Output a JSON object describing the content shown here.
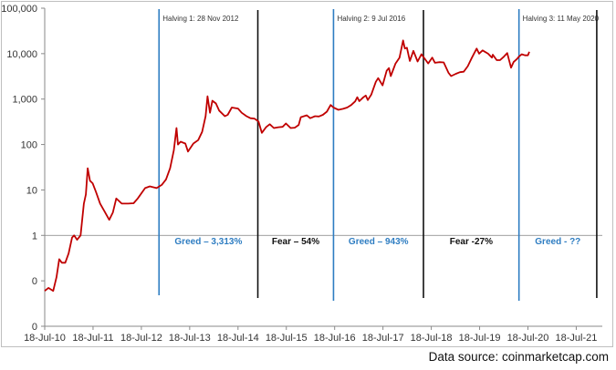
{
  "source_note": "Data source: coinmarketcap.com",
  "colors": {
    "price_line": "#c00000",
    "halving_line": "#2e7dc2",
    "marker_line": "#111111",
    "axis_text": "#333333",
    "greed_text": "#2e7dc2",
    "fear_text": "#111111"
  },
  "chart_data": {
    "type": "line",
    "title": "",
    "xlabel": "",
    "ylabel": "",
    "y_scale": "log",
    "y_tick_labels": [
      "0",
      "0",
      "1",
      "10",
      "100",
      "1,000",
      "10,000",
      "100,000"
    ],
    "y_tick_values": [
      0.01,
      0.1,
      1,
      10,
      100,
      1000,
      10000,
      100000
    ],
    "x_tick_labels": [
      "18-Jul-10",
      "18-Jul-11",
      "18-Jul-12",
      "18-Jul-13",
      "18-Jul-14",
      "18-Jul-15",
      "18-Jul-16",
      "18-Jul-17",
      "18-Jul-18",
      "18-Jul-19",
      "18-Jul-20",
      "18-Jul-21"
    ],
    "x_range": [
      "2010-07-18",
      "2022-01-31"
    ],
    "y_range": [
      0.01,
      100000
    ],
    "grid": false,
    "series": [
      {
        "points": [
          [
            "2010-07-18",
            0.06
          ],
          [
            "2010-08-15",
            0.07
          ],
          [
            "2010-09-20",
            0.06
          ],
          [
            "2010-10-15",
            0.12
          ],
          [
            "2010-11-05",
            0.3
          ],
          [
            "2010-11-25",
            0.25
          ],
          [
            "2010-12-20",
            0.25
          ],
          [
            "2011-01-15",
            0.4
          ],
          [
            "2011-02-10",
            0.9
          ],
          [
            "2011-02-25",
            1.0
          ],
          [
            "2011-03-20",
            0.8
          ],
          [
            "2011-04-15",
            1.0
          ],
          [
            "2011-05-10",
            5
          ],
          [
            "2011-05-25",
            8
          ],
          [
            "2011-06-08",
            30
          ],
          [
            "2011-06-25",
            16
          ],
          [
            "2011-07-15",
            14
          ],
          [
            "2011-08-10",
            9
          ],
          [
            "2011-09-10",
            5
          ],
          [
            "2011-10-10",
            3.5
          ],
          [
            "2011-11-18",
            2.2
          ],
          [
            "2011-12-15",
            3.2
          ],
          [
            "2012-01-10",
            6.5
          ],
          [
            "2012-02-20",
            5
          ],
          [
            "2012-04-10",
            5
          ],
          [
            "2012-05-20",
            5.1
          ],
          [
            "2012-06-20",
            6.5
          ],
          [
            "2012-08-15",
            11
          ],
          [
            "2012-09-20",
            12
          ],
          [
            "2012-11-10",
            11
          ],
          [
            "2012-12-20",
            13
          ],
          [
            "2013-01-20",
            17
          ],
          [
            "2013-02-20",
            30
          ],
          [
            "2013-03-20",
            75
          ],
          [
            "2013-04-09",
            230
          ],
          [
            "2013-04-20",
            100
          ],
          [
            "2013-05-10",
            115
          ],
          [
            "2013-06-15",
            105
          ],
          [
            "2013-07-05",
            70
          ],
          [
            "2013-08-15",
            105
          ],
          [
            "2013-09-20",
            125
          ],
          [
            "2013-10-20",
            190
          ],
          [
            "2013-11-15",
            420
          ],
          [
            "2013-11-30",
            1150
          ],
          [
            "2013-12-18",
            500
          ],
          [
            "2014-01-05",
            920
          ],
          [
            "2014-02-01",
            800
          ],
          [
            "2014-02-25",
            560
          ],
          [
            "2014-04-10",
            420
          ],
          [
            "2014-05-01",
            450
          ],
          [
            "2014-06-01",
            650
          ],
          [
            "2014-07-18",
            620
          ],
          [
            "2014-08-15",
            500
          ],
          [
            "2014-09-20",
            420
          ],
          [
            "2014-10-20",
            380
          ],
          [
            "2014-11-20",
            370
          ],
          [
            "2014-12-20",
            320
          ],
          [
            "2015-01-14",
            180
          ],
          [
            "2015-02-15",
            240
          ],
          [
            "2015-03-15",
            280
          ],
          [
            "2015-04-15",
            230
          ],
          [
            "2015-05-20",
            240
          ],
          [
            "2015-06-20",
            245
          ],
          [
            "2015-07-15",
            290
          ],
          [
            "2015-08-20",
            230
          ],
          [
            "2015-09-20",
            235
          ],
          [
            "2015-10-20",
            270
          ],
          [
            "2015-11-05",
            400
          ],
          [
            "2015-12-20",
            440
          ],
          [
            "2016-01-15",
            380
          ],
          [
            "2016-02-20",
            420
          ],
          [
            "2016-03-20",
            415
          ],
          [
            "2016-04-20",
            450
          ],
          [
            "2016-05-20",
            530
          ],
          [
            "2016-06-17",
            740
          ],
          [
            "2016-07-09",
            650
          ],
          [
            "2016-08-15",
            580
          ],
          [
            "2016-09-20",
            610
          ],
          [
            "2016-10-20",
            650
          ],
          [
            "2016-11-20",
            740
          ],
          [
            "2016-12-20",
            890
          ],
          [
            "2017-01-05",
            1100
          ],
          [
            "2017-01-20",
            900
          ],
          [
            "2017-02-20",
            1100
          ],
          [
            "2017-03-10",
            1200
          ],
          [
            "2017-03-25",
            950
          ],
          [
            "2017-04-20",
            1250
          ],
          [
            "2017-05-25",
            2400
          ],
          [
            "2017-06-12",
            2900
          ],
          [
            "2017-07-15",
            2000
          ],
          [
            "2017-08-15",
            4200
          ],
          [
            "2017-09-01",
            4800
          ],
          [
            "2017-09-15",
            3200
          ],
          [
            "2017-10-20",
            6000
          ],
          [
            "2017-11-20",
            8200
          ],
          [
            "2017-12-17",
            19500
          ],
          [
            "2017-12-30",
            13000
          ],
          [
            "2018-01-15",
            13500
          ],
          [
            "2018-02-06",
            6900
          ],
          [
            "2018-03-05",
            11500
          ],
          [
            "2018-04-06",
            6700
          ],
          [
            "2018-05-05",
            9700
          ],
          [
            "2018-06-25",
            6100
          ],
          [
            "2018-07-25",
            8200
          ],
          [
            "2018-08-15",
            6300
          ],
          [
            "2018-09-20",
            6500
          ],
          [
            "2018-10-20",
            6400
          ],
          [
            "2018-11-25",
            3800
          ],
          [
            "2018-12-15",
            3200
          ],
          [
            "2019-01-20",
            3600
          ],
          [
            "2019-02-20",
            3900
          ],
          [
            "2019-03-20",
            4000
          ],
          [
            "2019-04-20",
            5300
          ],
          [
            "2019-05-20",
            8000
          ],
          [
            "2019-06-26",
            12900
          ],
          [
            "2019-07-15",
            10000
          ],
          [
            "2019-08-10",
            11800
          ],
          [
            "2019-09-20",
            10000
          ],
          [
            "2019-10-20",
            8200
          ],
          [
            "2019-10-26",
            9500
          ],
          [
            "2019-11-25",
            7200
          ],
          [
            "2019-12-20",
            7200
          ],
          [
            "2020-01-20",
            8700
          ],
          [
            "2020-02-12",
            10300
          ],
          [
            "2020-03-12",
            4900
          ],
          [
            "2020-04-01",
            6600
          ],
          [
            "2020-04-25",
            7600
          ],
          [
            "2020-05-11",
            8600
          ],
          [
            "2020-06-01",
            9700
          ],
          [
            "2020-06-25",
            9200
          ],
          [
            "2020-07-18",
            9200
          ],
          [
            "2020-07-28",
            11000
          ]
        ]
      }
    ],
    "vertical_lines": [
      {
        "date": "2012-11-28",
        "kind": "halving",
        "label": "Halving 1: 28 Nov 2012"
      },
      {
        "date": "2014-12-15",
        "kind": "marker",
        "label": ""
      },
      {
        "date": "2016-07-09",
        "kind": "halving",
        "label": "Halving 2: 9 Jul 2016"
      },
      {
        "date": "2018-05-20",
        "kind": "marker",
        "label": ""
      },
      {
        "date": "2020-05-11",
        "kind": "halving",
        "label": "Halving 3: 11 May 2020"
      },
      {
        "date": "2021-12-20",
        "kind": "marker",
        "label": ""
      }
    ],
    "annotations": [
      {
        "text": "Greed – 3,313%",
        "kind": "greed",
        "period_start": "2012-11-28",
        "period_end": "2014-12-15"
      },
      {
        "text": "Fear – 54%",
        "kind": "fear",
        "period_start": "2014-12-15",
        "period_end": "2016-07-09"
      },
      {
        "text": "Greed – 943%",
        "kind": "greed",
        "period_start": "2016-07-09",
        "period_end": "2018-05-20"
      },
      {
        "text": "Fear -27%",
        "kind": "fear",
        "period_start": "2018-05-20",
        "period_end": "2020-05-11"
      },
      {
        "text": "Greed - ??",
        "kind": "greed",
        "period_start": "2020-05-11",
        "period_end": "2021-12-20"
      }
    ]
  }
}
